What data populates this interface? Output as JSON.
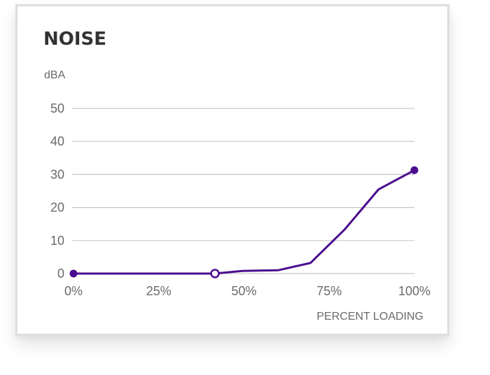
{
  "chart_data": {
    "type": "line",
    "title": "NOISE",
    "ylabel": "dBA",
    "xlabel": "PERCENT LOADING",
    "ylim": [
      0,
      50
    ],
    "xlim": [
      0,
      100
    ],
    "y_ticks": [
      0,
      10,
      20,
      30,
      40,
      50
    ],
    "x_tick_labels": [
      {
        "value": 0,
        "label": "0%"
      },
      {
        "value": 25,
        "label": "25%"
      },
      {
        "value": 50,
        "label": "50%"
      },
      {
        "value": 75,
        "label": "75%"
      },
      {
        "value": 100,
        "label": "100%"
      }
    ],
    "grid": true,
    "colors": {
      "line": "#4b0d8f",
      "grid": "#c8c8c8",
      "text": "#6a6a6a",
      "title": "#333333"
    },
    "series": [
      {
        "x": [
          0,
          41.5,
          49.5,
          60,
          69.5,
          79.5,
          89.5,
          100
        ],
        "y": [
          0,
          0,
          0.8,
          1,
          3.2,
          13.3,
          25.5,
          31.3
        ]
      }
    ],
    "markers": [
      {
        "x": 0,
        "y": 0,
        "style": "filled"
      },
      {
        "x": 41.5,
        "y": 0,
        "style": "hollow"
      },
      {
        "x": 100,
        "y": 31.3,
        "style": "filled"
      }
    ]
  }
}
